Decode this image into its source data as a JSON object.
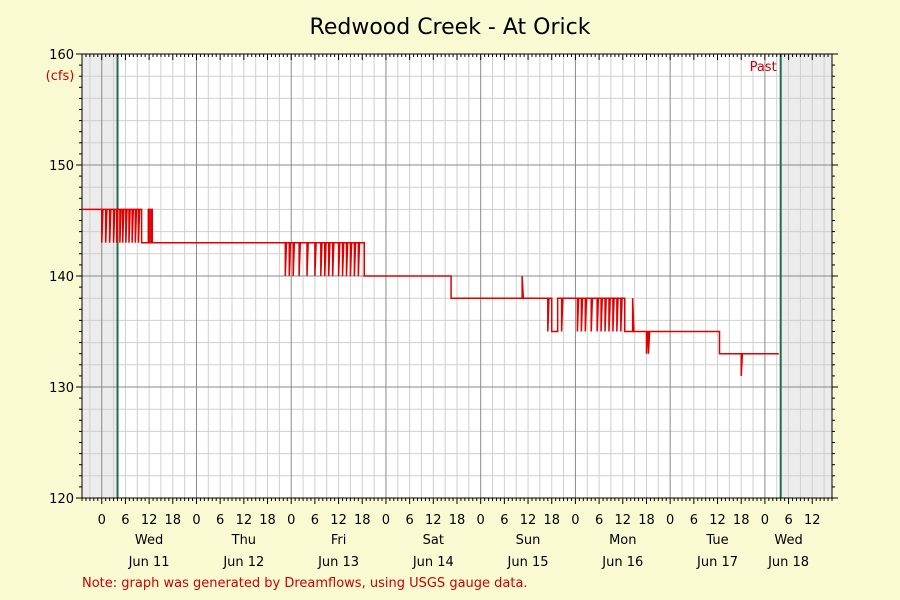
{
  "chart_data": {
    "type": "line",
    "title": "Redwood Creek - At Orick",
    "unit_label": "(cfs)",
    "ylim": [
      120,
      160
    ],
    "y_ticks": [
      120,
      130,
      140,
      150,
      160
    ],
    "y_tick_labels": [
      "120",
      "130",
      "140",
      "150",
      "160"
    ],
    "xlim_hours_from_jun11": [
      -5,
      185
    ],
    "hour_ticks": [
      {
        "h": 0,
        "label": "0"
      },
      {
        "h": 6,
        "label": "6"
      },
      {
        "h": 12,
        "label": "12"
      },
      {
        "h": 18,
        "label": "18"
      },
      {
        "h": 24,
        "label": "0"
      },
      {
        "h": 30,
        "label": "6"
      },
      {
        "h": 36,
        "label": "12"
      },
      {
        "h": 42,
        "label": "18"
      },
      {
        "h": 48,
        "label": "0"
      },
      {
        "h": 54,
        "label": "6"
      },
      {
        "h": 60,
        "label": "12"
      },
      {
        "h": 66,
        "label": "18"
      },
      {
        "h": 72,
        "label": "0"
      },
      {
        "h": 78,
        "label": "6"
      },
      {
        "h": 84,
        "label": "12"
      },
      {
        "h": 90,
        "label": "18"
      },
      {
        "h": 96,
        "label": "0"
      },
      {
        "h": 102,
        "label": "6"
      },
      {
        "h": 108,
        "label": "12"
      },
      {
        "h": 114,
        "label": "18"
      },
      {
        "h": 120,
        "label": "0"
      },
      {
        "h": 126,
        "label": "6"
      },
      {
        "h": 132,
        "label": "12"
      },
      {
        "h": 138,
        "label": "18"
      },
      {
        "h": 144,
        "label": "0"
      },
      {
        "h": 150,
        "label": "6"
      },
      {
        "h": 156,
        "label": "12"
      },
      {
        "h": 162,
        "label": "18"
      },
      {
        "h": 168,
        "label": "0"
      },
      {
        "h": 174,
        "label": "6"
      },
      {
        "h": 180,
        "label": "12"
      }
    ],
    "day_labels": [
      {
        "h": 12,
        "day": "Wed",
        "date": "Jun 11"
      },
      {
        "h": 36,
        "day": "Thu",
        "date": "Jun 12"
      },
      {
        "h": 60,
        "day": "Fri",
        "date": "Jun 13"
      },
      {
        "h": 84,
        "day": "Sat",
        "date": "Jun 14"
      },
      {
        "h": 108,
        "day": "Sun",
        "date": "Jun 15"
      },
      {
        "h": 132,
        "day": "Mon",
        "date": "Jun 16"
      },
      {
        "h": 156,
        "day": "Tue",
        "date": "Jun 17"
      },
      {
        "h": 174,
        "day": "Wed",
        "date": "Jun 18"
      }
    ],
    "past_window": {
      "label": "Past",
      "start_h": 4,
      "end_h": 172
    },
    "grid": true,
    "series": [
      {
        "color": "#e00000",
        "points": [
          [
            -5,
            146
          ],
          [
            0,
            146
          ],
          [
            0,
            143
          ],
          [
            0.3,
            146
          ],
          [
            1,
            146
          ],
          [
            1,
            143
          ],
          [
            1.3,
            146
          ],
          [
            2,
            146
          ],
          [
            2,
            143
          ],
          [
            2.3,
            146
          ],
          [
            3,
            146
          ],
          [
            3,
            143
          ],
          [
            3.3,
            146
          ],
          [
            3.8,
            146
          ],
          [
            3.8,
            143
          ],
          [
            4.1,
            146
          ],
          [
            4.6,
            146
          ],
          [
            4.6,
            143
          ],
          [
            4.9,
            146
          ],
          [
            5.3,
            146
          ],
          [
            5.3,
            143
          ],
          [
            5.6,
            146
          ],
          [
            6.1,
            146
          ],
          [
            6.1,
            143
          ],
          [
            6.4,
            146
          ],
          [
            6.9,
            146
          ],
          [
            6.9,
            143
          ],
          [
            7.2,
            146
          ],
          [
            7.7,
            146
          ],
          [
            7.7,
            143
          ],
          [
            8,
            146
          ],
          [
            8.5,
            146
          ],
          [
            8.5,
            143
          ],
          [
            8.8,
            146
          ],
          [
            9.3,
            146
          ],
          [
            9.3,
            143
          ],
          [
            9.6,
            146
          ],
          [
            10.1,
            146
          ],
          [
            10.1,
            143
          ],
          [
            11.8,
            143
          ],
          [
            11.8,
            146
          ],
          [
            12.1,
            146
          ],
          [
            12.1,
            143
          ],
          [
            12.5,
            143
          ],
          [
            12.5,
            146
          ],
          [
            12.8,
            146
          ],
          [
            12.8,
            143
          ],
          [
            46.5,
            143
          ],
          [
            46.5,
            140
          ],
          [
            46.8,
            143
          ],
          [
            47.5,
            143
          ],
          [
            47.5,
            140
          ],
          [
            47.8,
            143
          ],
          [
            48.5,
            143
          ],
          [
            48.5,
            140
          ],
          [
            48.8,
            143
          ],
          [
            50,
            143
          ],
          [
            50,
            140
          ],
          [
            50.3,
            143
          ],
          [
            52,
            143
          ],
          [
            52,
            140
          ],
          [
            52.3,
            143
          ],
          [
            54,
            143
          ],
          [
            54,
            140
          ],
          [
            54.3,
            143
          ],
          [
            55.5,
            143
          ],
          [
            55.5,
            140
          ],
          [
            55.8,
            143
          ],
          [
            56.5,
            143
          ],
          [
            56.5,
            140
          ],
          [
            56.8,
            143
          ],
          [
            57.5,
            143
          ],
          [
            57.5,
            140
          ],
          [
            57.8,
            143
          ],
          [
            58.5,
            143
          ],
          [
            58.5,
            140
          ],
          [
            58.8,
            143
          ],
          [
            60,
            143
          ],
          [
            60,
            140
          ],
          [
            60.3,
            143
          ],
          [
            61,
            143
          ],
          [
            61,
            140
          ],
          [
            61.3,
            143
          ],
          [
            62,
            143
          ],
          [
            62,
            140
          ],
          [
            62.3,
            143
          ],
          [
            63,
            143
          ],
          [
            63,
            140
          ],
          [
            63.3,
            143
          ],
          [
            64,
            143
          ],
          [
            64,
            140
          ],
          [
            64.3,
            143
          ],
          [
            65,
            143
          ],
          [
            65,
            140
          ],
          [
            65.3,
            143
          ],
          [
            66.5,
            143
          ],
          [
            66.5,
            140
          ],
          [
            88.5,
            140
          ],
          [
            88.5,
            138
          ],
          [
            106.5,
            138
          ],
          [
            106.5,
            140
          ],
          [
            106.8,
            138
          ],
          [
            113,
            138
          ],
          [
            113,
            135
          ],
          [
            113.3,
            138
          ],
          [
            114,
            138
          ],
          [
            114,
            135
          ],
          [
            115,
            135
          ],
          [
            115.5,
            135
          ],
          [
            115.5,
            138
          ],
          [
            116.5,
            138
          ],
          [
            116.5,
            135
          ],
          [
            116.8,
            138
          ],
          [
            120.5,
            138
          ],
          [
            120.5,
            135
          ],
          [
            120.8,
            138
          ],
          [
            121.5,
            138
          ],
          [
            121.5,
            135
          ],
          [
            121.8,
            138
          ],
          [
            122.5,
            138
          ],
          [
            122.5,
            135
          ],
          [
            122.8,
            138
          ],
          [
            124,
            138
          ],
          [
            124,
            135
          ],
          [
            124.3,
            138
          ],
          [
            125.5,
            138
          ],
          [
            125.5,
            135
          ],
          [
            125.8,
            138
          ],
          [
            126.5,
            138
          ],
          [
            126.5,
            135
          ],
          [
            126.8,
            138
          ],
          [
            127.5,
            138
          ],
          [
            127.5,
            135
          ],
          [
            127.8,
            138
          ],
          [
            128.5,
            138
          ],
          [
            128.5,
            135
          ],
          [
            128.8,
            138
          ],
          [
            129.5,
            138
          ],
          [
            129.5,
            135
          ],
          [
            129.8,
            138
          ],
          [
            130.5,
            138
          ],
          [
            130.5,
            135
          ],
          [
            130.8,
            138
          ],
          [
            131.5,
            138
          ],
          [
            131.5,
            135
          ],
          [
            131.8,
            138
          ],
          [
            132.5,
            138
          ],
          [
            132.5,
            135
          ],
          [
            133,
            135
          ],
          [
            134.5,
            135
          ],
          [
            134.5,
            138
          ],
          [
            134.8,
            135
          ],
          [
            138,
            135
          ],
          [
            138,
            133
          ],
          [
            138.3,
            135
          ],
          [
            138.5,
            135
          ],
          [
            138.5,
            133
          ],
          [
            138.8,
            135
          ],
          [
            156.5,
            135
          ],
          [
            156.5,
            133
          ],
          [
            162,
            133
          ],
          [
            162,
            131
          ],
          [
            162.3,
            133
          ],
          [
            171.5,
            133
          ]
        ]
      }
    ]
  },
  "note": "Note: graph was generated by Dreamflows, using USGS gauge data."
}
